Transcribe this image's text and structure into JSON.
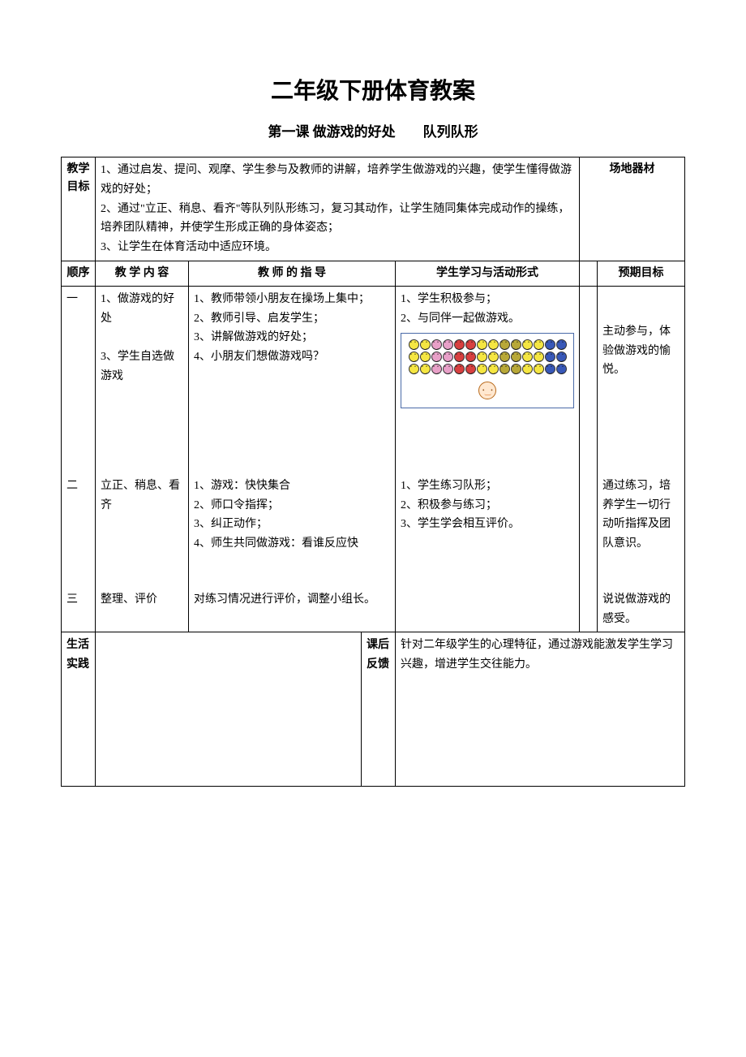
{
  "mainTitle": "二年级下册体育教案",
  "subtitle": "第一课 做游戏的好处　　队列队形",
  "objectives": {
    "label": "教学目标",
    "text": "1、通过启发、提问、观摩、学生参与及教师的讲解，培养学生做游戏的兴趣，使学生懂得做游戏的好处；\n2、通过\"立正、稍息、看齐\"等队列队形练习，复习其动作，让学生随同集体完成动作的操练，培养团队精神，并使学生形成正确的身体姿态；\n3、让学生在体育活动中适应环境。"
  },
  "equipment": {
    "label": "场地器材"
  },
  "headers": {
    "seq": "顺序",
    "content": "教 学 内 容",
    "teacher": "教 师 的 指 导",
    "student": "学生学习与活动形式",
    "target": "预期目标"
  },
  "rows": [
    {
      "seq": "一",
      "content": "1、做游戏的好处\n\n3、学生自选做游戏",
      "teacher": "1、教师带领小朋友在操场上集中；\n2、教师引导、启发学生；\n3、讲解做游戏的好处；\n4、小朋友们想做游戏吗？",
      "student": "1、学生积极参与；\n2、与同伴一起做游戏。",
      "target": "主动参与，体验做游戏的愉悦。"
    },
    {
      "seq": "二",
      "content": "立正、稍息、看齐",
      "teacher": "1、游戏：快快集合\n2、师口令指挥；\n3、纠正动作；\n4、师生共同做游戏：看谁反应快",
      "student": "1、学生练习队形；\n2、积极参与练习；\n3、学生学会相互评价。",
      "target": "通过练习，培养学生一切行动听指挥及团队意识。"
    },
    {
      "seq": "三",
      "content": "整理、评价",
      "teacher": "对练习情况进行评价，调整小组长。",
      "student": "",
      "target": "说说做游戏的感受。"
    }
  ],
  "bottom": {
    "practiceLabel": "生活实践",
    "feedbackLabel": "课后反馈",
    "feedbackText": "针对二年级学生的心理特征，通过游戏能激发学生学习兴趣，增进学生交往能力。"
  },
  "smileyColors": {
    "yellow": "#f5e642",
    "pink": "#e8a0c8",
    "red": "#d84040",
    "olive": "#b8a838",
    "blue": "#3858b8",
    "border": "#4a6aa8"
  },
  "smileyGrid": [
    [
      "yellow",
      "yellow",
      "pink",
      "pink",
      "red",
      "red",
      "yellow",
      "yellow",
      "olive",
      "olive",
      "yellow",
      "yellow",
      "blue",
      "blue"
    ],
    [
      "yellow",
      "yellow",
      "pink",
      "pink",
      "red",
      "red",
      "yellow",
      "yellow",
      "olive",
      "olive",
      "yellow",
      "yellow",
      "blue",
      "blue"
    ],
    [
      "yellow",
      "yellow",
      "pink",
      "pink",
      "red",
      "red",
      "yellow",
      "yellow",
      "olive",
      "olive",
      "yellow",
      "yellow",
      "blue",
      "blue"
    ]
  ]
}
